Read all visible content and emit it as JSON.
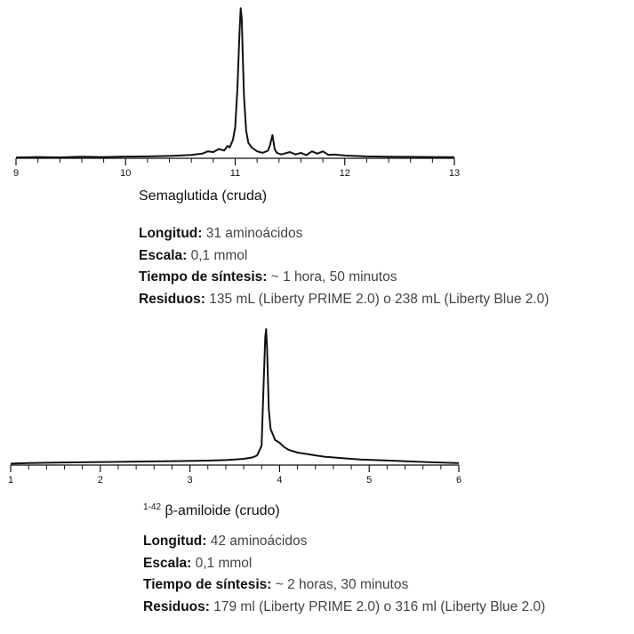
{
  "chart_data": [
    {
      "type": "line",
      "title": "Semaglutida (cruda)",
      "xlim": [
        9,
        13
      ],
      "x_ticks": [
        9,
        10,
        11,
        12,
        13
      ],
      "x_tick_labels": [
        "9",
        "10",
        "11",
        "12",
        "13"
      ],
      "ylim": [
        0,
        100
      ],
      "grid": false,
      "series": [
        {
          "x": [
            9.0,
            9.2,
            9.4,
            9.6,
            9.8,
            10.0,
            10.2,
            10.4,
            10.5,
            10.6,
            10.7,
            10.75,
            10.8,
            10.85,
            10.9,
            10.93,
            10.95,
            10.98,
            11.0,
            11.02,
            11.04,
            11.05,
            11.06,
            11.07,
            11.08,
            11.1,
            11.12,
            11.15,
            11.2,
            11.25,
            11.3,
            11.32,
            11.34,
            11.36,
            11.38,
            11.42,
            11.5,
            11.55,
            11.6,
            11.65,
            11.7,
            11.75,
            11.8,
            11.85,
            11.9,
            12.0,
            12.2,
            12.4,
            12.6,
            12.8,
            13.0
          ],
          "y": [
            0.5,
            0.8,
            0.6,
            1.0,
            0.8,
            1.1,
            1.2,
            1.5,
            1.8,
            2.2,
            3.0,
            4.5,
            4.0,
            6.0,
            5.0,
            8.0,
            7.0,
            12.0,
            20.0,
            45.0,
            82.0,
            97.0,
            90.0,
            65.0,
            40.0,
            18.0,
            10.0,
            7.0,
            4.5,
            3.5,
            5.0,
            9.0,
            15.0,
            6.0,
            3.5,
            2.5,
            4.0,
            2.5,
            3.5,
            2.0,
            4.5,
            3.0,
            4.5,
            2.2,
            2.5,
            1.8,
            1.2,
            1.0,
            0.9,
            0.8,
            0.7
          ]
        }
      ]
    },
    {
      "type": "line",
      "title_sup": "1-42",
      "title": "β-amiloide (crudo)",
      "xlim": [
        1,
        6
      ],
      "x_ticks": [
        1,
        2,
        3,
        4,
        5,
        6
      ],
      "x_tick_labels": [
        "1",
        "2",
        "3",
        "4",
        "5",
        "6"
      ],
      "ylim": [
        0,
        100
      ],
      "grid": false,
      "series": [
        {
          "x": [
            1.0,
            1.2,
            1.5,
            1.8,
            2.0,
            2.3,
            2.6,
            2.9,
            3.2,
            3.4,
            3.5,
            3.6,
            3.7,
            3.75,
            3.8,
            3.82,
            3.84,
            3.85,
            3.86,
            3.88,
            3.9,
            3.95,
            4.0,
            4.05,
            4.1,
            4.2,
            4.3,
            4.4,
            4.5,
            4.7,
            4.9,
            5.1,
            5.3,
            5.5,
            5.7,
            5.9,
            6.0
          ],
          "y": [
            1.0,
            1.5,
            1.8,
            2.0,
            2.2,
            2.4,
            2.6,
            2.9,
            3.2,
            3.6,
            4.0,
            4.5,
            5.5,
            7.0,
            14.0,
            55.0,
            92.0,
            98.0,
            85.0,
            40.0,
            26.0,
            18.0,
            16.0,
            13.0,
            11.0,
            9.0,
            8.0,
            7.0,
            6.0,
            5.0,
            4.0,
            3.5,
            3.0,
            2.5,
            2.0,
            1.6,
            1.4
          ]
        }
      ]
    }
  ],
  "info1": {
    "longitud_label": "Longitud:",
    "longitud_value": " 31 aminoácidos",
    "escala_label": "Escala:",
    "escala_value": " 0,1 mmol",
    "tiempo_label": "Tiempo de síntesis:",
    "tiempo_value": " ~ 1 hora, 50 minutos",
    "residuos_label": "Residuos:",
    "residuos_value": " 135 mL (Liberty PRIME 2.0) o 238 mL (Liberty Blue 2.0)"
  },
  "info2": {
    "longitud_label": "Longitud:",
    "longitud_value": " 42 aminoácidos",
    "escala_label": "Escala:",
    "escala_value": " 0,1 mmol",
    "tiempo_label": "Tiempo de síntesis:",
    "tiempo_value": " ~ 2 horas, 30 minutos",
    "residuos_label": "Residuos:",
    "residuos_value": " 179 ml (Liberty PRIME 2.0) o 316 ml (Liberty Blue 2.0)"
  }
}
